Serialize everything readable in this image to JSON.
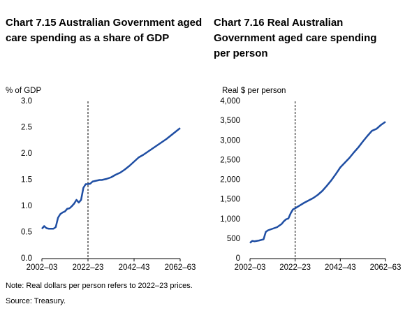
{
  "chart_data": [
    {
      "type": "line",
      "title": "Chart 7.15  Australian Government aged care spending as a share of GDP",
      "ylabel": "% of GDP",
      "color": "#1f4ea3",
      "x": [
        2002,
        2003,
        2004,
        2005,
        2006,
        2007,
        2008,
        2009,
        2010,
        2011,
        2012,
        2013,
        2014,
        2015,
        2016,
        2017,
        2018,
        2019,
        2020,
        2021,
        2022,
        2023,
        2024,
        2025,
        2026,
        2027,
        2028,
        2030,
        2032,
        2034,
        2036,
        2038,
        2040,
        2042,
        2044,
        2046,
        2048,
        2050,
        2052,
        2054,
        2056,
        2058,
        2060,
        2062
      ],
      "values": [
        0.57,
        0.62,
        0.58,
        0.57,
        0.57,
        0.57,
        0.6,
        0.78,
        0.85,
        0.88,
        0.9,
        0.95,
        0.96,
        1.0,
        1.05,
        1.12,
        1.07,
        1.12,
        1.35,
        1.42,
        1.42,
        1.43,
        1.47,
        1.48,
        1.49,
        1.5,
        1.5,
        1.52,
        1.55,
        1.6,
        1.64,
        1.7,
        1.77,
        1.85,
        1.93,
        1.98,
        2.04,
        2.1,
        2.16,
        2.22,
        2.28,
        2.35,
        2.42,
        2.49
      ],
      "xlim": [
        2002,
        2062
      ],
      "xticks": [
        {
          "value": 2002,
          "label": "2002–03"
        },
        {
          "value": 2022,
          "label": "2022–23"
        },
        {
          "value": 2042,
          "label": "2042–43"
        },
        {
          "value": 2062,
          "label": "2062–63"
        }
      ],
      "ylim": [
        0,
        3
      ],
      "yticks": [
        {
          "value": 0,
          "label": "0.0"
        },
        {
          "value": 0.5,
          "label": "0.5"
        },
        {
          "value": 1,
          "label": "1.0"
        },
        {
          "value": 1.5,
          "label": "1.5"
        },
        {
          "value": 2,
          "label": "2.0"
        },
        {
          "value": 2.5,
          "label": "2.5"
        },
        {
          "value": 3,
          "label": "3.0"
        }
      ],
      "reference_x": 2022
    },
    {
      "type": "line",
      "title": "Chart 7.16  Real Australian Government aged care spending per person",
      "ylabel": "Real $ per person",
      "color": "#1f4ea3",
      "x": [
        2002,
        2003,
        2004,
        2006,
        2008,
        2009,
        2010,
        2012,
        2014,
        2016,
        2017,
        2018,
        2019,
        2020,
        2021,
        2022,
        2024,
        2026,
        2028,
        2030,
        2032,
        2034,
        2036,
        2038,
        2040,
        2042,
        2044,
        2046,
        2048,
        2050,
        2052,
        2054,
        2056,
        2058,
        2060,
        2062
      ],
      "values": [
        400,
        450,
        440,
        460,
        490,
        680,
        720,
        760,
        800,
        880,
        950,
        1000,
        1020,
        1150,
        1250,
        1280,
        1350,
        1420,
        1480,
        1540,
        1620,
        1720,
        1850,
        1990,
        2150,
        2320,
        2440,
        2560,
        2700,
        2830,
        2980,
        3120,
        3250,
        3300,
        3400,
        3480
      ],
      "xlim": [
        2002,
        2062
      ],
      "xticks": [
        {
          "value": 2002,
          "label": "2002–03"
        },
        {
          "value": 2022,
          "label": "2022–23"
        },
        {
          "value": 2042,
          "label": "2042–43"
        },
        {
          "value": 2062,
          "label": "2062–63"
        }
      ],
      "ylim": [
        0,
        4000
      ],
      "yticks": [
        0,
        500,
        {
          "value": 1000,
          "label": "1,000"
        },
        {
          "value": 1500,
          "label": "1,500"
        },
        {
          "value": 2000,
          "label": "2,000"
        },
        {
          "value": 2500,
          "label": "2,500"
        },
        {
          "value": 3000,
          "label": "3,000"
        },
        {
          "value": 3500,
          "label": "3,500"
        },
        {
          "value": 4000,
          "label": "4,000"
        }
      ],
      "reference_x": 2022
    }
  ],
  "notes": [
    "Note: Real dollars per person refers to 2022–23 prices.",
    "Source: Treasury."
  ]
}
